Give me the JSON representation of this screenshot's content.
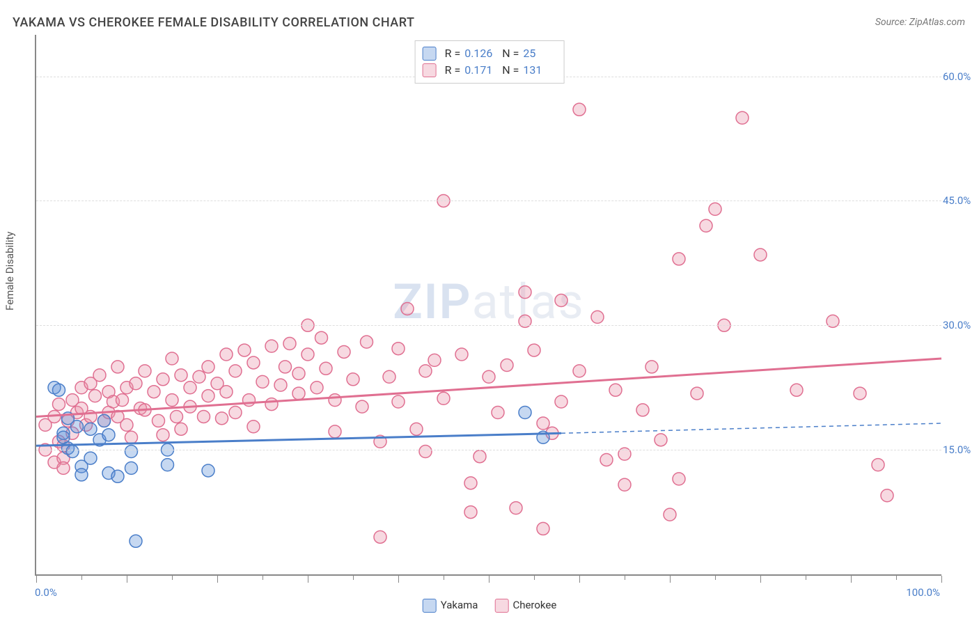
{
  "title": "YAKAMA VS CHEROKEE FEMALE DISABILITY CORRELATION CHART",
  "source": "Source: ZipAtlas.com",
  "ylabel": "Female Disability",
  "watermark_zip": "ZIP",
  "watermark_atlas": "atlas",
  "chart": {
    "type": "scatter",
    "xlim": [
      0,
      100
    ],
    "ylim": [
      0,
      65
    ],
    "y_ticks": [
      15.0,
      30.0,
      45.0,
      60.0
    ],
    "y_tick_labels": [
      "15.0%",
      "30.0%",
      "45.0%",
      "60.0%"
    ],
    "x_major_ticks": [
      0,
      10,
      20,
      30,
      40,
      50,
      60,
      70,
      80,
      90,
      100
    ],
    "x_minor_ticks": [
      5,
      15,
      25,
      35,
      45,
      55,
      65,
      75,
      85,
      95
    ],
    "xlabel_min": "0.0%",
    "xlabel_max": "100.0%",
    "background_color": "#ffffff",
    "grid_color": "#dddddd",
    "axis_color": "#888888",
    "marker_radius": 9,
    "marker_stroke_width": 1.5,
    "marker_fill_opacity": 0.35
  },
  "series": {
    "yakama": {
      "label": "Yakama",
      "color": "#5b8fd6",
      "fill": "rgba(91,143,214,0.35)",
      "stroke": "#4a7ec9",
      "R": "0.126",
      "N": "25",
      "trend": {
        "x1": 0,
        "y1": 15.5,
        "x2": 58,
        "y2": 17.0,
        "dash_to_x": 100,
        "dash_to_y": 18.2
      },
      "points": [
        [
          2,
          22.5
        ],
        [
          2.5,
          22.2
        ],
        [
          3,
          17
        ],
        [
          3,
          16.5
        ],
        [
          3.5,
          15.2
        ],
        [
          3.5,
          18.8
        ],
        [
          4,
          14.8
        ],
        [
          4.5,
          17.8
        ],
        [
          5,
          13.0
        ],
        [
          5,
          12.0
        ],
        [
          6,
          17.5
        ],
        [
          6,
          14.0
        ],
        [
          7,
          16.2
        ],
        [
          7.5,
          18.5
        ],
        [
          8,
          12.2
        ],
        [
          8,
          16.8
        ],
        [
          9,
          11.8
        ],
        [
          10.5,
          14.8
        ],
        [
          10.5,
          12.8
        ],
        [
          11,
          4.0
        ],
        [
          14.5,
          15.0
        ],
        [
          14.5,
          13.2
        ],
        [
          19,
          12.5
        ],
        [
          54,
          19.5
        ],
        [
          56,
          16.5
        ]
      ]
    },
    "cherokee": {
      "label": "Cherokee",
      "color": "#e892a9",
      "fill": "rgba(232,146,169,0.35)",
      "stroke": "#e06f91",
      "R": "0.171",
      "N": "131",
      "trend": {
        "x1": 0,
        "y1": 19.0,
        "x2": 100,
        "y2": 26.0
      },
      "points": [
        [
          1,
          15
        ],
        [
          1,
          18
        ],
        [
          2,
          13.5
        ],
        [
          2,
          19
        ],
        [
          2.5,
          16
        ],
        [
          2.5,
          20.5
        ],
        [
          3,
          14
        ],
        [
          3,
          12.8
        ],
        [
          3,
          15.5
        ],
        [
          3.5,
          18.5
        ],
        [
          4,
          21
        ],
        [
          4,
          17
        ],
        [
          4.5,
          19.5
        ],
        [
          5,
          22.5
        ],
        [
          5,
          20
        ],
        [
          5.5,
          18
        ],
        [
          6,
          23
        ],
        [
          6,
          19
        ],
        [
          6.5,
          21.5
        ],
        [
          7,
          24
        ],
        [
          7.5,
          18.5
        ],
        [
          8,
          22
        ],
        [
          8,
          19.5
        ],
        [
          8.5,
          20.8
        ],
        [
          9,
          25
        ],
        [
          9,
          19
        ],
        [
          9.5,
          21
        ],
        [
          10,
          22.5
        ],
        [
          10,
          18
        ],
        [
          10.5,
          16.5
        ],
        [
          11,
          23
        ],
        [
          11.5,
          20
        ],
        [
          12,
          24.5
        ],
        [
          12,
          19.8
        ],
        [
          13,
          22
        ],
        [
          13.5,
          18.5
        ],
        [
          14,
          23.5
        ],
        [
          14,
          16.8
        ],
        [
          15,
          26
        ],
        [
          15,
          21
        ],
        [
          15.5,
          19
        ],
        [
          16,
          24
        ],
        [
          16,
          17.5
        ],
        [
          17,
          22.5
        ],
        [
          17,
          20.2
        ],
        [
          18,
          23.8
        ],
        [
          18.5,
          19
        ],
        [
          19,
          25
        ],
        [
          19,
          21.5
        ],
        [
          20,
          23
        ],
        [
          20.5,
          18.8
        ],
        [
          21,
          26.5
        ],
        [
          21,
          22
        ],
        [
          22,
          24.5
        ],
        [
          22,
          19.5
        ],
        [
          23,
          27
        ],
        [
          23.5,
          21
        ],
        [
          24,
          25.5
        ],
        [
          24,
          17.8
        ],
        [
          25,
          23.2
        ],
        [
          26,
          27.5
        ],
        [
          26,
          20.5
        ],
        [
          27,
          22.8
        ],
        [
          27.5,
          25
        ],
        [
          28,
          27.8
        ],
        [
          29,
          21.8
        ],
        [
          29,
          24.2
        ],
        [
          30,
          30
        ],
        [
          30,
          26.5
        ],
        [
          31,
          22.5
        ],
        [
          31.5,
          28.5
        ],
        [
          32,
          24.8
        ],
        [
          33,
          21
        ],
        [
          33,
          17.2
        ],
        [
          34,
          26.8
        ],
        [
          35,
          23.5
        ],
        [
          36,
          20.2
        ],
        [
          36.5,
          28
        ],
        [
          38,
          4.5
        ],
        [
          38,
          16
        ],
        [
          39,
          23.8
        ],
        [
          40,
          27.2
        ],
        [
          40,
          20.8
        ],
        [
          41,
          32
        ],
        [
          42,
          17.5
        ],
        [
          43,
          24.5
        ],
        [
          43,
          14.8
        ],
        [
          44,
          25.8
        ],
        [
          45,
          45
        ],
        [
          45,
          21.2
        ],
        [
          47,
          26.5
        ],
        [
          48,
          11
        ],
        [
          48,
          7.5
        ],
        [
          49,
          14.2
        ],
        [
          50,
          23.8
        ],
        [
          51,
          19.5
        ],
        [
          52,
          25.2
        ],
        [
          53,
          8
        ],
        [
          54,
          34
        ],
        [
          54,
          30.5
        ],
        [
          55,
          27
        ],
        [
          56,
          5.5
        ],
        [
          56,
          18.2
        ],
        [
          57,
          17
        ],
        [
          58,
          33
        ],
        [
          58,
          20.8
        ],
        [
          60,
          56
        ],
        [
          60,
          24.5
        ],
        [
          62,
          31
        ],
        [
          63,
          13.8
        ],
        [
          64,
          22.2
        ],
        [
          65,
          14.5
        ],
        [
          65,
          10.8
        ],
        [
          67,
          19.8
        ],
        [
          68,
          25
        ],
        [
          69,
          16.2
        ],
        [
          70,
          7.2
        ],
        [
          71,
          11.5
        ],
        [
          71,
          38
        ],
        [
          73,
          21.8
        ],
        [
          74,
          42
        ],
        [
          75,
          44
        ],
        [
          76,
          30
        ],
        [
          78,
          55
        ],
        [
          80,
          38.5
        ],
        [
          84,
          22.2
        ],
        [
          88,
          30.5
        ],
        [
          91,
          21.8
        ],
        [
          93,
          13.2
        ],
        [
          94,
          9.5
        ]
      ]
    }
  },
  "stats_box": {
    "R_label": "R =",
    "N_label": "N ="
  }
}
